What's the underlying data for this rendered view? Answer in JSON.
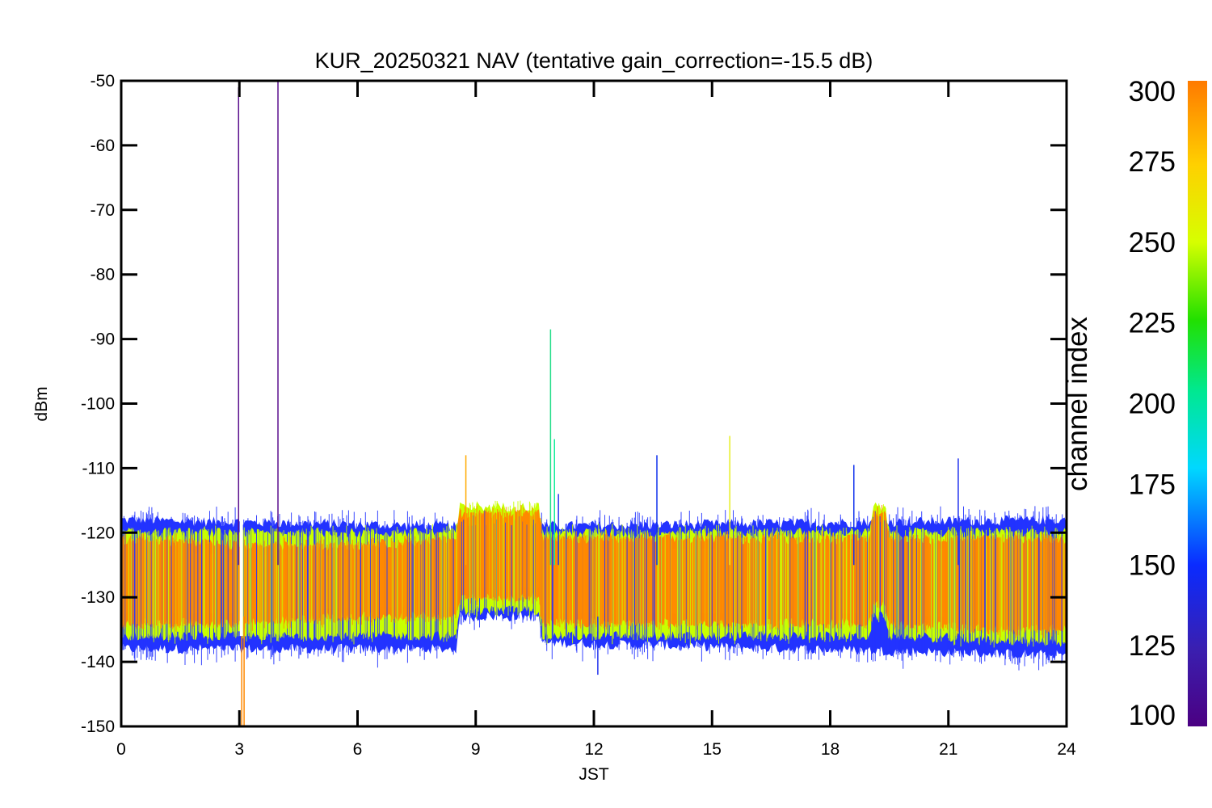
{
  "chart_data": {
    "type": "line",
    "title": "KUR_20250321 NAV (tentative gain_correction=-15.5 dB)",
    "xlabel": "JST",
    "ylabel": "dBm",
    "xlim": [
      0,
      24
    ],
    "ylim": [
      -150,
      -50
    ],
    "x_ticks": [
      0,
      3,
      6,
      9,
      12,
      15,
      18,
      21,
      24
    ],
    "x_tick_labels": [
      "0",
      "3",
      "6",
      "9",
      "12",
      "15",
      "18",
      "21",
      "24"
    ],
    "y_ticks": [
      -50,
      -60,
      -70,
      -80,
      -90,
      -100,
      -110,
      -120,
      -130,
      -140,
      -150
    ],
    "y_tick_labels": [
      "-50",
      "-60",
      "-70",
      "-80",
      "-90",
      "-100",
      "-110",
      "-120",
      "-130",
      "-140",
      "-150"
    ],
    "grid": false,
    "colorbar": {
      "label": "channel index",
      "range": [
        100,
        300
      ],
      "ticks": [
        300,
        275,
        250,
        225,
        200,
        175,
        150,
        125,
        100
      ],
      "tick_labels": [
        "300",
        "275",
        "250",
        "225",
        "200",
        "175",
        "150",
        "125",
        "100"
      ],
      "colormap": "rainbow (purple → blue → cyan → green → yellow → orange)"
    },
    "series": [
      {
        "channels": "high (≈280–300)",
        "color": "#ff8800",
        "x": [
          0,
          3,
          6,
          8.5,
          8.6,
          10.6,
          10.7,
          13,
          16,
          19.0,
          19.1,
          19.4,
          19.5,
          22,
          24
        ],
        "y_lower": [
          -134,
          -134,
          -133,
          -133,
          -130,
          -130,
          -134,
          -134,
          -134,
          -134,
          -131,
          -131,
          -134,
          -135,
          -135
        ],
        "y_upper": [
          -121,
          -122,
          -122,
          -121,
          -117,
          -117,
          -121,
          -121,
          -121,
          -121,
          -117,
          -117,
          -121,
          -121,
          -121
        ]
      },
      {
        "channels": "mid (≈225–275)",
        "color": "#c8ff00",
        "x": [
          0,
          8.5,
          8.6,
          10.6,
          10.7,
          19.0,
          19.1,
          19.4,
          19.5,
          24
        ],
        "y_lower": [
          -136,
          -136,
          -132,
          -132,
          -136,
          -136,
          -133,
          -133,
          -136,
          -137
        ],
        "y_upper": [
          -120,
          -120,
          -116,
          -116,
          -120,
          -120,
          -116,
          -116,
          -120,
          -120
        ]
      },
      {
        "channels": "low (≈100–200)",
        "color": "#2233ff",
        "x": [
          0,
          8.5,
          8.6,
          10.6,
          10.7,
          24
        ],
        "y_lower": [
          -138,
          -138,
          -133,
          -133,
          -137,
          -139
        ],
        "y_upper": [
          -118,
          -119,
          -119,
          -119,
          -119,
          -118
        ]
      }
    ],
    "spikes": [
      {
        "x": 2.98,
        "y": -51,
        "color": "#5a0f8e"
      },
      {
        "x": 3.06,
        "y": -150,
        "color": "#ff8800"
      },
      {
        "x": 3.12,
        "y": -150,
        "color": "#ff8800"
      },
      {
        "x": 3.98,
        "y": -50,
        "color": "#5a0f8e"
      },
      {
        "x": 10.9,
        "y": -88.5,
        "color": "#22dd88"
      },
      {
        "x": 11.0,
        "y": -105.5,
        "color": "#11ee99"
      },
      {
        "x": 15.45,
        "y": -105,
        "color": "#e6ee22"
      },
      {
        "x": 8.75,
        "y": -108,
        "color": "#ffaa00"
      },
      {
        "x": 13.6,
        "y": -108,
        "color": "#1133ee"
      },
      {
        "x": 18.6,
        "y": -109.5,
        "color": "#1133ee"
      },
      {
        "x": 21.25,
        "y": -108.5,
        "color": "#2233ee"
      },
      {
        "x": 11.1,
        "y": -114,
        "color": "#2233ee"
      },
      {
        "x": 12.1,
        "y": -142,
        "color": "#2233ee"
      }
    ],
    "gap": {
      "x": 3.05
    }
  }
}
